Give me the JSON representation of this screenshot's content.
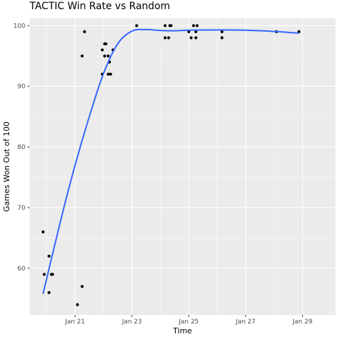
{
  "chart_data": {
    "type": "scatter",
    "title": "TACTIC Win Rate vs Random",
    "xlabel": "Time",
    "ylabel": "Games Won Out of 100",
    "x_tick_labels": [
      "Jan 21",
      "Jan 23",
      "Jan 25",
      "Jan 27",
      "Jan 29"
    ],
    "x_tick_dates": [
      "2019-01-21",
      "2019-01-23",
      "2019-01-25",
      "2019-01-27",
      "2019-01-29"
    ],
    "y_ticks": [
      60,
      70,
      80,
      90,
      100
    ],
    "xlim": [
      "2019-01-19T21:00",
      "2019-01-29T16:30"
    ],
    "ylim": [
      52.3,
      101.2
    ],
    "grid": true,
    "background": "#EBEBEB",
    "series": [
      {
        "kind": "points",
        "color": "#000000",
        "points": [
          {
            "x": "2019-01-19T21:00",
            "y": 66
          },
          {
            "x": "2019-01-19T22:00",
            "y": 59
          },
          {
            "x": "2019-01-20T02:00",
            "y": 62
          },
          {
            "x": "2019-01-20T02:00",
            "y": 56
          },
          {
            "x": "2019-01-20T04:00",
            "y": 59
          },
          {
            "x": "2019-01-20T05:00",
            "y": 59
          },
          {
            "x": "2019-01-21T02:00",
            "y": 54
          },
          {
            "x": "2019-01-21T06:00",
            "y": 57
          },
          {
            "x": "2019-01-21T06:00",
            "y": 95
          },
          {
            "x": "2019-01-21T08:00",
            "y": 99
          },
          {
            "x": "2019-01-21T23:00",
            "y": 96
          },
          {
            "x": "2019-01-21T23:00",
            "y": 92
          },
          {
            "x": "2019-01-22T01:00",
            "y": 97
          },
          {
            "x": "2019-01-22T01:00",
            "y": 95
          },
          {
            "x": "2019-01-22T02:00",
            "y": 97
          },
          {
            "x": "2019-01-22T04:00",
            "y": 95
          },
          {
            "x": "2019-01-22T04:00",
            "y": 92
          },
          {
            "x": "2019-01-22T05:00",
            "y": 94
          },
          {
            "x": "2019-01-22T06:00",
            "y": 92
          },
          {
            "x": "2019-01-22T08:00",
            "y": 96
          },
          {
            "x": "2019-01-23T04:00",
            "y": 100
          },
          {
            "x": "2019-01-24T04:00",
            "y": 100
          },
          {
            "x": "2019-01-24T04:00",
            "y": 98
          },
          {
            "x": "2019-01-24T07:00",
            "y": 98
          },
          {
            "x": "2019-01-24T08:00",
            "y": 100
          },
          {
            "x": "2019-01-24T09:00",
            "y": 100
          },
          {
            "x": "2019-01-25T00:00",
            "y": 99
          },
          {
            "x": "2019-01-25T02:00",
            "y": 98
          },
          {
            "x": "2019-01-25T04:00",
            "y": 100
          },
          {
            "x": "2019-01-25T06:00",
            "y": 99
          },
          {
            "x": "2019-01-25T06:00",
            "y": 98
          },
          {
            "x": "2019-01-25T07:00",
            "y": 100
          },
          {
            "x": "2019-01-26T04:00",
            "y": 99
          },
          {
            "x": "2019-01-26T04:00",
            "y": 98
          },
          {
            "x": "2019-01-28T02:00",
            "y": 99
          },
          {
            "x": "2019-01-28T21:00",
            "y": 99
          }
        ]
      },
      {
        "kind": "smooth",
        "color": "#3366FF",
        "points": [
          {
            "x": "2019-01-19T21:00",
            "y": 55.8
          },
          {
            "x": "2019-01-20T12:00",
            "y": 68
          },
          {
            "x": "2019-01-21T00:00",
            "y": 77
          },
          {
            "x": "2019-01-21T12:00",
            "y": 85
          },
          {
            "x": "2019-01-22T00:00",
            "y": 92.1
          },
          {
            "x": "2019-01-22T12:00",
            "y": 97
          },
          {
            "x": "2019-01-23T00:00",
            "y": 99.1
          },
          {
            "x": "2019-01-23T12:00",
            "y": 99.35
          },
          {
            "x": "2019-01-24T00:00",
            "y": 99.2
          },
          {
            "x": "2019-01-24T12:00",
            "y": 99.15
          },
          {
            "x": "2019-01-25T00:00",
            "y": 99.25
          },
          {
            "x": "2019-01-26T00:00",
            "y": 99.3
          },
          {
            "x": "2019-01-27T00:00",
            "y": 99.25
          },
          {
            "x": "2019-01-28T00:00",
            "y": 99.05
          },
          {
            "x": "2019-01-28T21:00",
            "y": 98.75
          }
        ]
      }
    ]
  }
}
